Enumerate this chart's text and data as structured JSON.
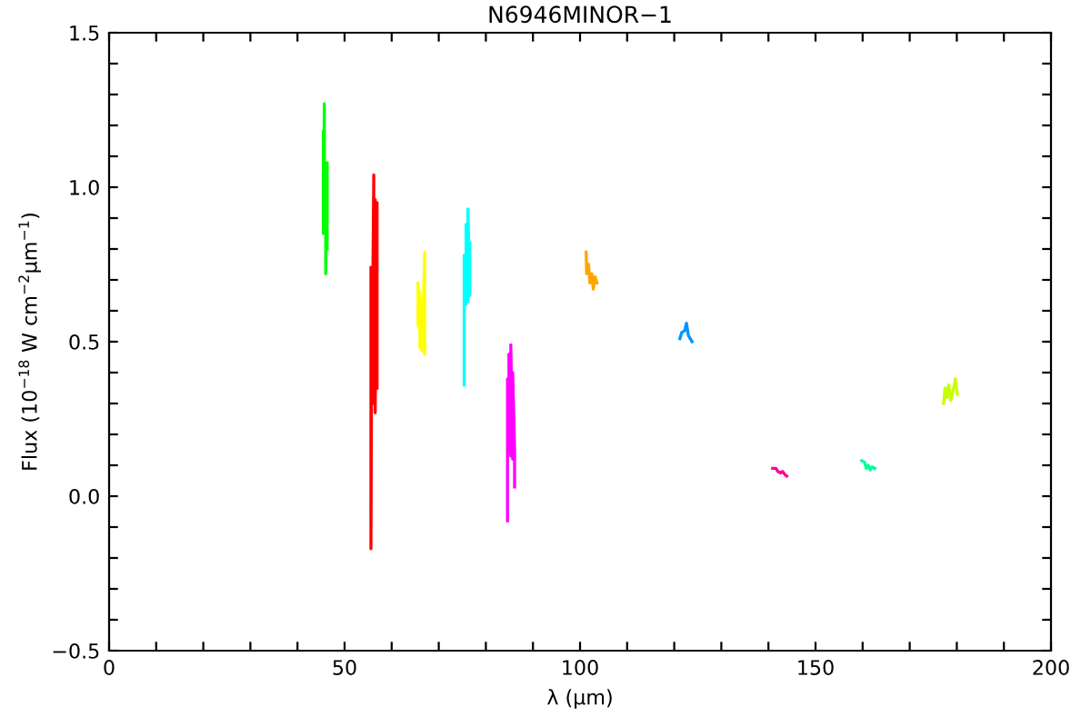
{
  "chart_data": {
    "type": "line",
    "title": "N6946MINOR−1",
    "xlabel": "λ (μm)",
    "ylabel": "Flux (10$^{−18}$ W cm$^{−2}$μm$^{−1}$)",
    "xlim": [
      0,
      200
    ],
    "ylim": [
      -0.5,
      1.5
    ],
    "xticks": [
      0,
      {
        "value": 10,
        "label": null
      },
      {
        "value": 20,
        "label": null
      },
      {
        "value": 30,
        "label": null
      },
      {
        "value": 40,
        "label": null
      },
      50,
      {
        "value": 60,
        "label": null
      },
      {
        "value": 70,
        "label": null
      },
      {
        "value": 80,
        "label": null
      },
      {
        "value": 90,
        "label": null
      },
      100,
      {
        "value": 110,
        "label": null
      },
      {
        "value": 120,
        "label": null
      },
      {
        "value": 130,
        "label": null
      },
      {
        "value": 140,
        "label": null
      },
      150,
      {
        "value": 160,
        "label": null
      },
      {
        "value": 170,
        "label": null
      },
      {
        "value": 180,
        "label": null
      },
      {
        "value": 190,
        "label": null
      },
      200
    ],
    "yticks": [
      {
        "value": -0.5,
        "label": "−0.5"
      },
      {
        "value": -0.4,
        "label": null
      },
      {
        "value": -0.3,
        "label": null
      },
      {
        "value": -0.2,
        "label": null
      },
      {
        "value": -0.1,
        "label": null
      },
      {
        "value": 0,
        "label": "0.0"
      },
      {
        "value": 0.1,
        "label": null
      },
      {
        "value": 0.2,
        "label": null
      },
      {
        "value": 0.3,
        "label": null
      },
      {
        "value": 0.4,
        "label": null
      },
      {
        "value": 0.5,
        "label": "0.5"
      },
      {
        "value": 0.6,
        "label": null
      },
      {
        "value": 0.7,
        "label": null
      },
      {
        "value": 0.8,
        "label": null
      },
      {
        "value": 0.9,
        "label": null
      },
      {
        "value": 1.0,
        "label": "1.0"
      },
      {
        "value": 1.1,
        "label": null
      },
      {
        "value": 1.2,
        "label": null
      },
      {
        "value": 1.3,
        "label": null
      },
      {
        "value": 1.4,
        "label": null
      },
      {
        "value": 1.5,
        "label": "1.5"
      }
    ],
    "grid": false,
    "legend": false,
    "marker": "none",
    "line_style": "solid",
    "series": [
      {
        "color": "#00ff00",
        "x": [
          45.5,
          45.5,
          45.7,
          45.7,
          46.0,
          46.0,
          46.3,
          46.3
        ],
        "values": [
          1.18,
          0.85,
          1.27,
          0.95,
          1.05,
          0.72,
          1.08,
          0.8
        ]
      },
      {
        "color": "#ff0000",
        "x": [
          55.6,
          55.6,
          55.8,
          55.8,
          56.2,
          56.2,
          56.5,
          56.5,
          56.9,
          56.9
        ],
        "values": [
          0.74,
          -0.17,
          0.73,
          0.33,
          1.04,
          0.3,
          0.96,
          0.27,
          0.95,
          0.35
        ]
      },
      {
        "color": "#ffff00",
        "x": [
          65.6,
          65.6,
          66.0,
          66.0,
          66.5,
          66.5,
          67.0,
          67.0
        ],
        "values": [
          0.69,
          0.55,
          0.66,
          0.48,
          0.62,
          0.47,
          0.79,
          0.46
        ]
      },
      {
        "color": "#00ffff",
        "x": [
          75.4,
          75.4,
          75.8,
          75.8,
          76.2,
          76.2,
          76.6,
          76.6
        ],
        "values": [
          0.36,
          0.78,
          0.62,
          0.88,
          0.63,
          0.93,
          0.65,
          0.82
        ]
      },
      {
        "color": "#ff00ff",
        "x": [
          84.6,
          84.6,
          84.9,
          84.9,
          85.3,
          85.3,
          85.7,
          85.7,
          86.1,
          86.1
        ],
        "values": [
          -0.08,
          0.38,
          0.15,
          0.46,
          0.13,
          0.49,
          0.12,
          0.4,
          0.15,
          0.03
        ]
      },
      {
        "color": "#ffa500",
        "x": [
          101.3,
          101.4,
          101.8,
          102.1,
          102.5,
          102.8,
          103.2,
          103.6
        ],
        "values": [
          0.79,
          0.72,
          0.75,
          0.69,
          0.72,
          0.67,
          0.71,
          0.69
        ]
      },
      {
        "color": "#0096ff",
        "x": [
          121.2,
          121.6,
          122.2,
          122.6,
          123.0,
          123.4,
          123.8
        ],
        "values": [
          0.51,
          0.53,
          0.535,
          0.56,
          0.52,
          0.51,
          0.5
        ]
      },
      {
        "color": "#ff0096",
        "x": [
          140.9,
          141.6,
          142.0,
          142.6,
          143.0,
          143.5,
          143.9
        ],
        "values": [
          0.09,
          0.09,
          0.08,
          0.075,
          0.08,
          0.07,
          0.065
        ]
      },
      {
        "color": "#00ff96",
        "x": [
          159.8,
          160.4,
          160.8,
          161.2,
          161.6,
          162.0,
          162.6
        ],
        "values": [
          0.115,
          0.11,
          0.09,
          0.1,
          0.085,
          0.095,
          0.09
        ]
      },
      {
        "color": "#c8ff00",
        "x": [
          177.2,
          177.5,
          177.9,
          178.3,
          178.7,
          179.2,
          179.7,
          180.1
        ],
        "values": [
          0.3,
          0.35,
          0.32,
          0.36,
          0.31,
          0.34,
          0.38,
          0.33
        ]
      }
    ]
  }
}
